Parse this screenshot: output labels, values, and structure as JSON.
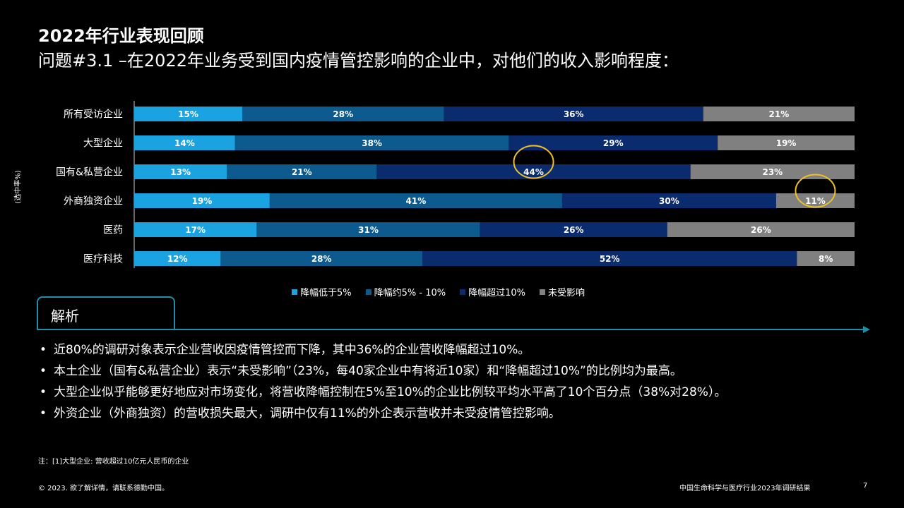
{
  "title": "2022年行业表现回顾",
  "subtitle": "问题#3.1 –在2022年业务受到国内疫情管控影响的企业中，对他们的收入影响程度：",
  "y_axis_note": "(选中率%)",
  "chart_data": {
    "type": "bar",
    "orientation": "horizontal",
    "stacked": true,
    "categories": [
      "所有受访企业",
      "大型企业",
      "国有&私营企业",
      "外商独资企业",
      "医药",
      "医疗科技"
    ],
    "series": [
      {
        "name": "降幅低于5%",
        "color": "#1aa3e0",
        "values": [
          15,
          14,
          13,
          19,
          17,
          12
        ]
      },
      {
        "name": "降幅约5% - 10%",
        "color": "#0d5b8e",
        "values": [
          28,
          38,
          21,
          41,
          31,
          28
        ]
      },
      {
        "name": "降幅超过10%",
        "color": "#0b2b6f",
        "values": [
          36,
          29,
          44,
          30,
          26,
          52
        ]
      },
      {
        "name": "未受影响",
        "color": "#808080",
        "values": [
          21,
          19,
          23,
          11,
          26,
          8
        ]
      }
    ],
    "value_suffix": "%",
    "legend_position": "bottom",
    "highlights": [
      {
        "category": "国有&私营企业",
        "series": "降幅超过10%",
        "color": "#f0c020"
      },
      {
        "category": "外商独资企业",
        "series": "未受影响",
        "color": "#f0c020"
      }
    ]
  },
  "analysis": {
    "tab_label": "解析",
    "bullets": [
      "近80%的调研对象表示企业营收因疫情管控而下降，其中36%的企业营收降幅超过10%。",
      "本土企业（国有&私营企业）表示“未受影响”（23%，每40家企业中有将近10家）和“降幅超过10%”的比例均为最高。",
      "大型企业似乎能够更好地应对市场变化，将营收降幅控制在5%至10%的企业比例较平均水平高了10个百分点（38%对28%）。",
      "外资企业（外商独资）的营收损失最大，调研中仅有11%的外企表示营收并未受疫情管控影响。"
    ]
  },
  "note": "注：[1]大型企业: 营收超过10亿元人民币的企业",
  "footer": {
    "copyright": "© 2023. 欲了解详情，请联系德勤中国。",
    "report_title": "中国生命科学与医疗行业2023年调研结果",
    "page_number": "7"
  }
}
